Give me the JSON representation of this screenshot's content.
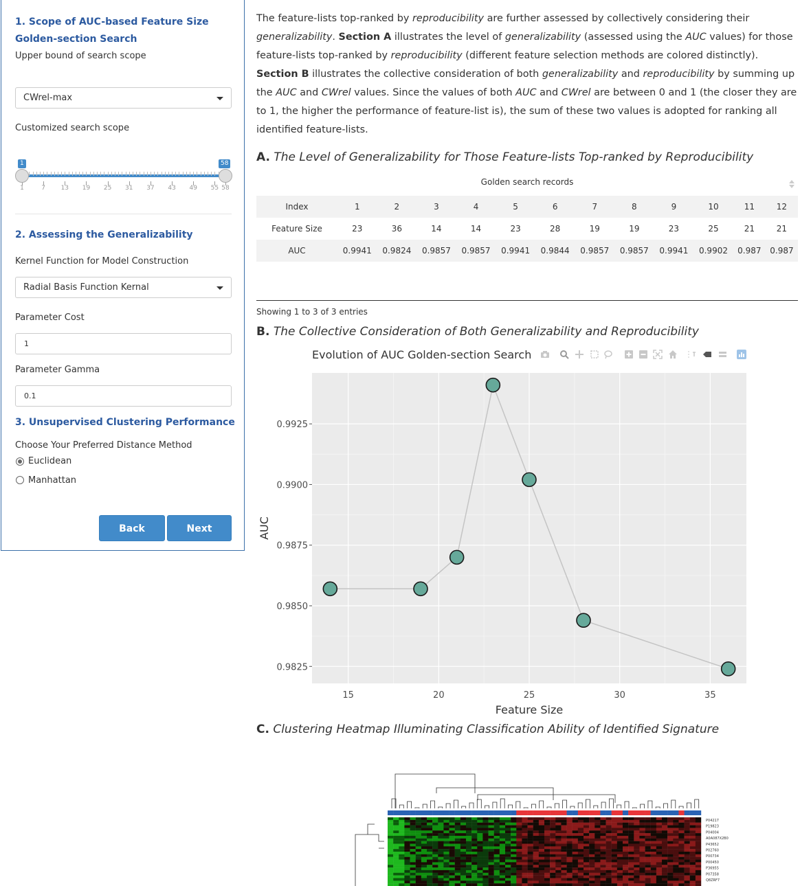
{
  "sidebar": {
    "section1_title": "1. Scope of AUC-based Feature Size Golden-section Search",
    "upper_bound_label": "Upper bound of search scope",
    "upper_bound_value": "CWrel-max",
    "custom_scope_label": "Customized search scope",
    "slider": {
      "min_badge": "1",
      "max_badge": "58",
      "range_min": 1,
      "range_max": 58,
      "value_low": 1,
      "value_high": 58,
      "ticks": [
        "1",
        "7",
        "13",
        "19",
        "25",
        "31",
        "37",
        "43",
        "49",
        "55",
        "58"
      ]
    },
    "section2_title": "2. Assessing the Generalizability",
    "kernel_label": "Kernel Function for Model Construction",
    "kernel_value": "Radial Basis Function Kernal",
    "cost_label": "Parameter Cost",
    "cost_value": "1",
    "gamma_label": "Parameter Gamma",
    "gamma_value": "0.1",
    "section3_title": "3. Unsupervised Clustering Performance",
    "distance_label": "Choose Your Preferred Distance Method",
    "distance_options": [
      "Euclidean",
      "Manhattan"
    ],
    "distance_selected": "Euclidean",
    "back_label": "Back",
    "next_label": "Next"
  },
  "main": {
    "intro": {
      "p1": "The feature-lists top-ranked by ",
      "p1_em": "reproducibility",
      "p2": " are further assessed by collectively considering their ",
      "p2_em": "generalizability",
      "p3": ". ",
      "secA": "Section A",
      "p4": " illustrates the level of ",
      "p4_em": "generalizability",
      "p5": " (assessed using the ",
      "p5_em": "AUC",
      "p6": " values) for those feature-lists top-ranked by ",
      "p6_em": "reproducibility",
      "p7": " (different feature selection methods are colored distinctly). ",
      "secB": "Section B",
      "p8": " illustrates the collective consideration of both ",
      "p8_em": "generalizability",
      "p9": " and ",
      "p9_em": "reproducibility",
      "p10": " by summing up the ",
      "p10_em": "AUC",
      "p11": " and ",
      "p11_em": "CWrel",
      "p12": " values. Since the values of both ",
      "p12_em": "AUC",
      "p13": " and ",
      "p13_em": "CWrel",
      "p14": " are between 0 and 1 (the closer they are to 1, the higher the performance of feature-list is), the sum of these two values is adopted for ranking all identified feature-lists."
    },
    "sectionA": {
      "letter": "A.",
      "title": "The Level of Generalizability for Those Feature-lists Top-ranked by Reproducibility"
    },
    "table": {
      "caption": "Golden search records",
      "row_labels": [
        "Index",
        "Feature Size",
        "AUC"
      ],
      "index": [
        "1",
        "2",
        "3",
        "4",
        "5",
        "6",
        "7",
        "8",
        "9",
        "10",
        "11",
        "12"
      ],
      "feature_size": [
        "23",
        "36",
        "14",
        "14",
        "23",
        "28",
        "19",
        "19",
        "23",
        "25",
        "21",
        "21"
      ],
      "auc": [
        "0.9941",
        "0.9824",
        "0.9857",
        "0.9857",
        "0.9941",
        "0.9844",
        "0.9857",
        "0.9857",
        "0.9941",
        "0.9902",
        "0.987",
        "0.987"
      ],
      "info": "Showing 1 to 3 of 3 entries"
    },
    "sectionB": {
      "letter": "B.",
      "title": "The Collective Consideration of Both Generalizability and Reproducibility"
    },
    "sectionC": {
      "letter": "C.",
      "title": "Clustering Heatmap Illuminating Classification Ability of Identified Signature"
    },
    "heatmap_labels": [
      "P04217",
      "P19823",
      "P04004",
      "A0A087X2B0",
      "P43652",
      "P02760",
      "P00734",
      "P00450",
      "P36955",
      "P07358",
      "Q8ZRF7"
    ]
  },
  "chart_data": {
    "type": "line",
    "title": "Evolution of AUC Golden-section Search",
    "xlabel": "Feature Size",
    "ylabel": "AUC",
    "x": [
      14,
      19,
      21,
      23,
      25,
      28,
      36
    ],
    "y": [
      0.9857,
      0.9857,
      0.987,
      0.9941,
      0.9902,
      0.9844,
      0.9824
    ],
    "xlim": [
      13,
      37
    ],
    "ylim": [
      0.9818,
      0.9946
    ],
    "xticks": [
      15,
      20,
      25,
      30,
      35
    ],
    "yticks": [
      0.9825,
      0.985,
      0.9875,
      0.99,
      0.9925
    ],
    "ytick_labels": [
      "0.9825",
      "0.9850",
      "0.9875",
      "0.9900",
      "0.9925"
    ],
    "grid": true,
    "marker_color": "#66a99a",
    "line_color": "#c4c4c4",
    "panel_color": "#ebebeb"
  },
  "colors": {
    "accent": "#428bca",
    "heading": "#2c5aa0",
    "sidebar_border": "#3a6fa8"
  }
}
